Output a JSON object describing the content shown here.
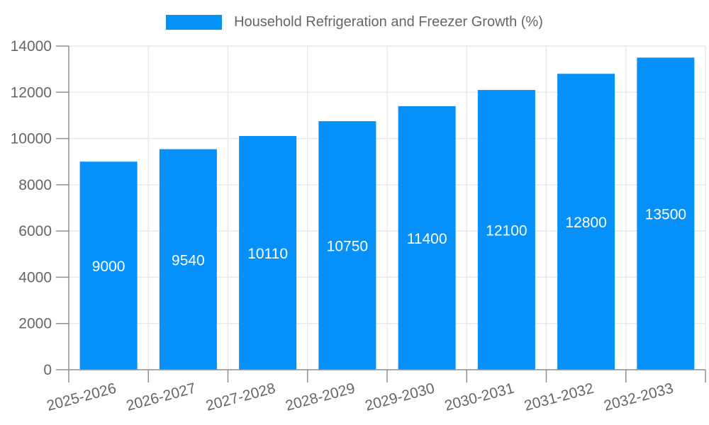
{
  "chart_data": {
    "type": "bar",
    "title": "Household Refrigeration and Freezer Growth (%)",
    "legend": {
      "label": "Household Refrigeration and Freezer Growth (%)",
      "position": "top"
    },
    "categories": [
      "2025-2026",
      "2026-2027",
      "2027-2028",
      "2028-2029",
      "2029-2030",
      "2030-2031",
      "2031-2032",
      "2032-2033"
    ],
    "series": [
      {
        "name": "Household Refrigeration and Freezer Growth (%)",
        "values": [
          9000,
          9540,
          10110,
          10750,
          11400,
          12100,
          12800,
          13500
        ]
      }
    ],
    "bar_value_labels": [
      "9000",
      "9540",
      "10110",
      "10750",
      "11400",
      "12100",
      "12800",
      "13500"
    ],
    "ylim": [
      0,
      14000
    ],
    "y_ticks": [
      0,
      2000,
      4000,
      6000,
      8000,
      10000,
      12000,
      14000
    ],
    "y_tick_labels": [
      "0",
      "2000",
      "4000",
      "6000",
      "8000",
      "10000",
      "12000",
      "14000"
    ],
    "grid": true,
    "x_tick_rotation_deg": -15,
    "xlabel": "",
    "ylabel": "",
    "colors": {
      "bar": "#0590FA",
      "tick_text": "#666666",
      "grid": "#E8E8E8",
      "axis": "#8F8F8F",
      "bar_label_text": "#FFFFFF",
      "background": "#FFFFFF"
    }
  }
}
